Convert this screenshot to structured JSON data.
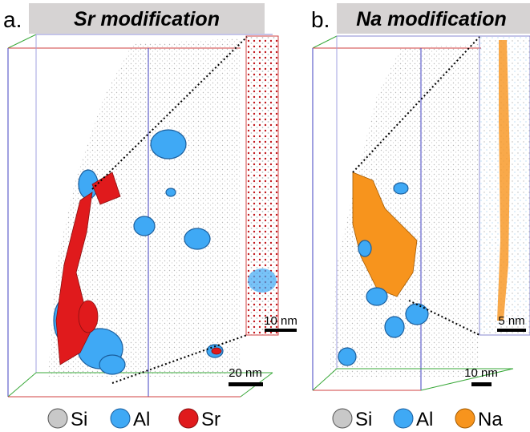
{
  "panels": [
    {
      "label": "a.",
      "title": "Sr modification",
      "scale_bar_main": "20 nm",
      "scale_bar_inset": "10 nm",
      "legend": [
        "Si",
        "Al",
        "Sr"
      ]
    },
    {
      "label": "b.",
      "title": "Na modification",
      "scale_bar_main": "10 nm",
      "scale_bar_inset": "5 nm",
      "legend": [
        "Si",
        "Al",
        "Na"
      ]
    }
  ]
}
